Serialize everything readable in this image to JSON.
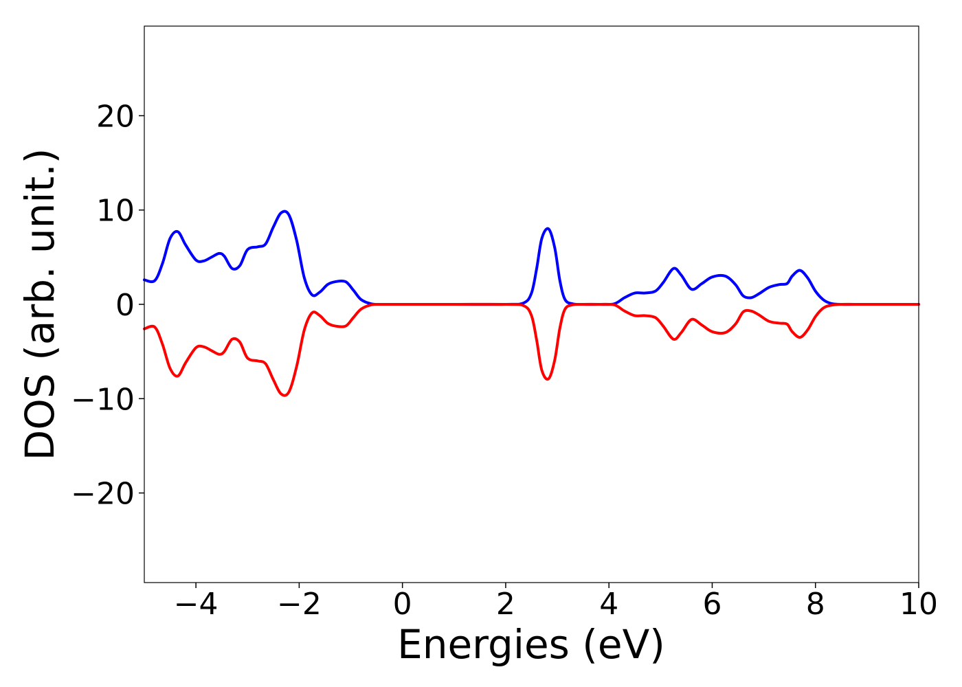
{
  "chart_data": {
    "type": "line",
    "title": "",
    "xlabel": "Energies (eV)",
    "ylabel": "DOS (arb. unit.)",
    "xlim": [
      -5,
      10
    ],
    "ylim": [
      -29.5,
      29.5
    ],
    "xticks": [
      -4,
      -2,
      0,
      2,
      4,
      6,
      8,
      10
    ],
    "xtick_labels": [
      "−4",
      "−2",
      "0",
      "2",
      "4",
      "6",
      "8",
      "10"
    ],
    "yticks": [
      -20,
      -10,
      0,
      10,
      20
    ],
    "ytick_labels": [
      "−20",
      "−10",
      "0",
      "10",
      "20"
    ],
    "grid": false,
    "legend": false,
    "series": [
      {
        "color": "#0000ff",
        "x": [
          -5.0,
          -4.8,
          -4.65,
          -4.5,
          -4.35,
          -4.2,
          -4.0,
          -3.85,
          -3.7,
          -3.55,
          -3.45,
          -3.3,
          -3.15,
          -3.0,
          -2.8,
          -2.65,
          -2.5,
          -2.35,
          -2.2,
          -2.05,
          -1.9,
          -1.75,
          -1.6,
          -1.45,
          -1.3,
          -1.1,
          -0.95,
          -0.8,
          -0.6,
          -0.4,
          0.0,
          1.0,
          2.0,
          2.35,
          2.5,
          2.6,
          2.7,
          2.83,
          2.95,
          3.05,
          3.15,
          3.3,
          3.5,
          3.8,
          4.1,
          4.3,
          4.5,
          4.7,
          4.9,
          5.05,
          5.25,
          5.4,
          5.6,
          5.8,
          6.0,
          6.25,
          6.45,
          6.6,
          6.75,
          6.9,
          7.1,
          7.3,
          7.45,
          7.55,
          7.7,
          7.85,
          8.0,
          8.15,
          8.3,
          8.5,
          9.0,
          10.0
        ],
        "y": [
          2.6,
          2.5,
          4.3,
          7.0,
          7.7,
          6.3,
          4.7,
          4.6,
          5.0,
          5.4,
          5.1,
          3.8,
          4.1,
          5.8,
          6.1,
          6.4,
          8.2,
          9.7,
          9.5,
          6.8,
          2.8,
          1.0,
          1.3,
          2.1,
          2.4,
          2.4,
          1.5,
          0.5,
          0.05,
          0.0,
          0.0,
          0.0,
          0.0,
          0.15,
          1.2,
          3.8,
          7.0,
          8.0,
          6.0,
          2.5,
          0.5,
          0.05,
          0.0,
          0.0,
          0.05,
          0.7,
          1.2,
          1.2,
          1.4,
          2.3,
          3.8,
          3.1,
          1.6,
          2.2,
          2.9,
          3.0,
          2.1,
          0.9,
          0.7,
          1.1,
          1.8,
          2.1,
          2.2,
          3.0,
          3.6,
          2.8,
          1.4,
          0.5,
          0.1,
          0.0,
          0.0,
          0.0
        ]
      },
      {
        "color": "#ff0000",
        "x": [
          -5.0,
          -4.8,
          -4.65,
          -4.5,
          -4.35,
          -4.2,
          -4.0,
          -3.85,
          -3.7,
          -3.55,
          -3.45,
          -3.3,
          -3.15,
          -3.0,
          -2.8,
          -2.65,
          -2.5,
          -2.35,
          -2.2,
          -2.05,
          -1.9,
          -1.75,
          -1.6,
          -1.45,
          -1.3,
          -1.1,
          -0.95,
          -0.8,
          -0.6,
          -0.4,
          0.0,
          1.0,
          2.0,
          2.35,
          2.5,
          2.6,
          2.7,
          2.83,
          2.95,
          3.05,
          3.15,
          3.3,
          3.5,
          3.8,
          4.1,
          4.3,
          4.5,
          4.7,
          4.9,
          5.05,
          5.25,
          5.4,
          5.6,
          5.8,
          6.0,
          6.25,
          6.45,
          6.6,
          6.75,
          6.9,
          7.1,
          7.3,
          7.45,
          7.55,
          7.7,
          7.85,
          8.0,
          8.15,
          8.3,
          8.5,
          9.0,
          10.0
        ],
        "y": [
          -2.6,
          -2.4,
          -4.2,
          -6.8,
          -7.6,
          -6.2,
          -4.6,
          -4.5,
          -4.9,
          -5.3,
          -5.0,
          -3.7,
          -4.0,
          -5.7,
          -6.0,
          -6.3,
          -8.0,
          -9.5,
          -9.3,
          -6.6,
          -2.7,
          -0.9,
          -1.2,
          -2.0,
          -2.3,
          -2.3,
          -1.4,
          -0.5,
          -0.05,
          0.0,
          0.0,
          0.0,
          0.0,
          -0.15,
          -1.2,
          -3.8,
          -7.0,
          -7.9,
          -5.9,
          -2.5,
          -0.5,
          -0.05,
          0.0,
          0.0,
          -0.05,
          -0.7,
          -1.2,
          -1.2,
          -1.4,
          -2.3,
          -3.7,
          -3.0,
          -1.6,
          -2.2,
          -2.9,
          -3.0,
          -2.1,
          -0.8,
          -0.7,
          -1.1,
          -1.8,
          -2.0,
          -2.1,
          -2.9,
          -3.5,
          -2.7,
          -1.3,
          -0.4,
          -0.1,
          0.0,
          0.0,
          0.0
        ]
      }
    ]
  }
}
